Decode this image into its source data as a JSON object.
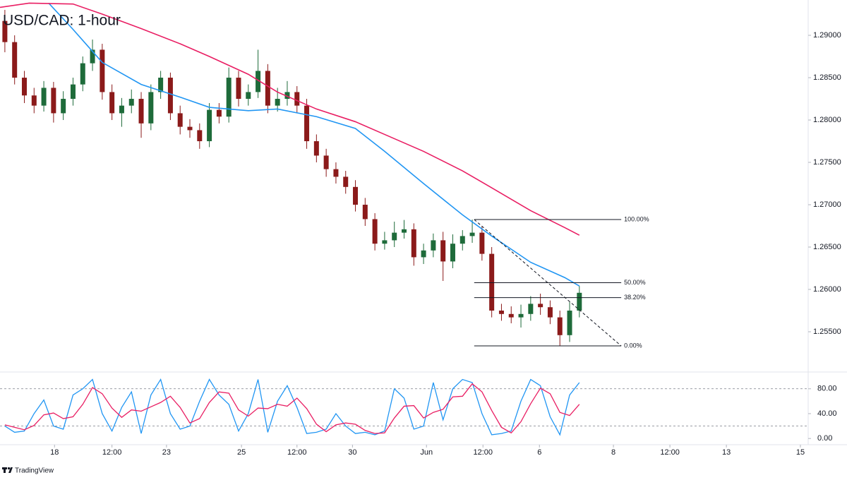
{
  "chart_data": [
    {
      "type": "candlestick",
      "title": "USD/CAD: 1-hour",
      "up_color": "#1e6b3a",
      "down_color": "#8b1a1a",
      "xlim": [
        -0.5,
        82.5
      ],
      "xticks": [
        {
          "value": 5.1,
          "label": "18"
        },
        {
          "value": 11,
          "label": "12:00"
        },
        {
          "value": 16.6,
          "label": "23"
        },
        {
          "value": 24.3,
          "label": "25"
        },
        {
          "value": 30,
          "label": "12:00"
        },
        {
          "value": 35.7,
          "label": "30"
        },
        {
          "value": 43.3,
          "label": "Jun"
        },
        {
          "value": 49.1,
          "label": "12:00"
        },
        {
          "value": 54.9,
          "label": "6"
        },
        {
          "value": 62.5,
          "label": "8"
        },
        {
          "value": 68.3,
          "label": "12:00"
        },
        {
          "value": 74.1,
          "label": "13"
        },
        {
          "value": 81.7,
          "label": "15"
        }
      ],
      "ylim": [
        1.25025,
        1.29417
      ],
      "yticks": [
        {
          "value": 1.255,
          "label": "1.25500"
        },
        {
          "value": 1.26,
          "label": "1.26000"
        },
        {
          "value": 1.265,
          "label": "1.26500"
        },
        {
          "value": 1.27,
          "label": "1.27000"
        },
        {
          "value": 1.275,
          "label": "1.27500"
        },
        {
          "value": 1.28,
          "label": "1.28000"
        },
        {
          "value": 1.285,
          "label": "1.28500"
        },
        {
          "value": 1.29,
          "label": "1.29000"
        }
      ],
      "open": [
        1.2917,
        1.2892,
        1.285,
        1.2829,
        1.2817,
        1.2838,
        1.2808,
        1.2825,
        1.2842,
        1.2867,
        1.2883,
        1.2833,
        1.2808,
        1.2817,
        1.2825,
        1.2796,
        1.2833,
        1.285,
        1.2808,
        1.2792,
        1.2788,
        1.2775,
        1.2812,
        1.2804,
        1.285,
        1.2825,
        1.2833,
        1.2858,
        1.2817,
        1.2825,
        1.2833,
        1.2817,
        1.2775,
        1.2758,
        1.2742,
        1.2733,
        1.2721,
        1.27,
        1.2683,
        1.2654,
        1.2658,
        1.2667,
        1.2671,
        1.2638,
        1.2646,
        1.2658,
        1.2633,
        1.2654,
        1.2663,
        1.2667,
        1.2642,
        1.2575,
        1.2571,
        1.2567,
        1.2571,
        1.2583,
        1.2579,
        1.2567,
        1.2546,
        1.2575
      ],
      "high": [
        1.293,
        1.29,
        1.2858,
        1.2838,
        1.2846,
        1.2845,
        1.2834,
        1.285,
        1.2875,
        1.2895,
        1.289,
        1.2842,
        1.2826,
        1.2836,
        1.2833,
        1.2842,
        1.2858,
        1.2856,
        1.2817,
        1.2801,
        1.2796,
        1.282,
        1.282,
        1.2862,
        1.2858,
        1.2842,
        1.2883,
        1.2866,
        1.2838,
        1.2846,
        1.284,
        1.2825,
        1.2783,
        1.2766,
        1.275,
        1.274,
        1.2729,
        1.2708,
        1.269,
        1.2668,
        1.268,
        1.2682,
        1.2678,
        1.2654,
        1.2666,
        1.2668,
        1.2665,
        1.267,
        1.26825,
        1.2674,
        1.265,
        1.2583,
        1.258,
        1.2582,
        1.2592,
        1.2595,
        1.2587,
        1.2575,
        1.2585,
        1.2604
      ],
      "low": [
        1.288,
        1.2842,
        1.282,
        1.2808,
        1.281,
        1.2797,
        1.28,
        1.2817,
        1.2834,
        1.2858,
        1.2824,
        1.28,
        1.2792,
        1.2808,
        1.2779,
        1.2788,
        1.2825,
        1.28,
        1.2783,
        1.2779,
        1.2766,
        1.2768,
        1.2796,
        1.2797,
        1.2816,
        1.2817,
        1.2826,
        1.2808,
        1.281,
        1.2817,
        1.2808,
        1.2766,
        1.275,
        1.2733,
        1.2725,
        1.2713,
        1.2692,
        1.2675,
        1.2646,
        1.2647,
        1.265,
        1.266,
        1.2628,
        1.263,
        1.2638,
        1.261,
        1.2625,
        1.2646,
        1.2655,
        1.2634,
        1.2567,
        1.2563,
        1.256,
        1.2555,
        1.2563,
        1.257,
        1.2559,
        1.25333,
        1.2538,
        1.2567
      ],
      "close": [
        1.2892,
        1.285,
        1.2829,
        1.2817,
        1.2838,
        1.2808,
        1.2825,
        1.2842,
        1.2867,
        1.2883,
        1.2833,
        1.2808,
        1.2817,
        1.2825,
        1.2796,
        1.2833,
        1.285,
        1.2808,
        1.2792,
        1.2788,
        1.2775,
        1.2812,
        1.2804,
        1.285,
        1.2825,
        1.2833,
        1.2858,
        1.2817,
        1.2825,
        1.2833,
        1.2817,
        1.2775,
        1.2758,
        1.2742,
        1.2733,
        1.2721,
        1.27,
        1.2683,
        1.2654,
        1.2658,
        1.2667,
        1.2671,
        1.2638,
        1.2646,
        1.2658,
        1.2633,
        1.2654,
        1.2663,
        1.2667,
        1.2642,
        1.2575,
        1.2571,
        1.2567,
        1.2571,
        1.2583,
        1.2579,
        1.2567,
        1.2546,
        1.2575,
        1.2596
      ],
      "series": [
        {
          "color": "#2196f3",
          "x": [
            4.5,
            7,
            10,
            14,
            18,
            21,
            25,
            28,
            32,
            36,
            39,
            43,
            47,
            50,
            54,
            57.5,
            59
          ],
          "values": [
            1.2938,
            1.2907,
            1.2868,
            1.2842,
            1.2827,
            1.2815,
            1.2811,
            1.2813,
            1.2804,
            1.279,
            1.2763,
            1.2725,
            1.2688,
            1.2663,
            1.2632,
            1.2614,
            1.2604
          ]
        },
        {
          "color": "#e91e63",
          "x": [
            -0.5,
            2.5,
            7,
            10,
            14,
            18,
            21,
            25,
            28,
            32,
            36,
            39,
            43,
            47,
            50,
            54,
            57.5,
            59
          ],
          "values": [
            1.2933,
            1.2938,
            1.2937,
            1.2925,
            1.2908,
            1.289,
            1.2875,
            1.2854,
            1.2833,
            1.2813,
            1.2798,
            1.2783,
            1.2763,
            1.274,
            1.272,
            1.2693,
            1.2673,
            1.2664
          ]
        }
      ],
      "fib": {
        "x": [
          48.2,
          63.3
        ],
        "levels": [
          {
            "label": "100.00%",
            "price": 1.26825
          },
          {
            "label": "50.00%",
            "price": 1.26079
          },
          {
            "label": "38.20%",
            "price": 1.25903
          },
          {
            "label": "0.00%",
            "price": 1.25333
          }
        ]
      }
    },
    {
      "type": "line",
      "ylim": [
        -10,
        107
      ],
      "yticks": [
        {
          "value": 0,
          "label": "0.00"
        },
        {
          "value": 40,
          "label": "40.00"
        },
        {
          "value": 80,
          "label": "80.00"
        }
      ],
      "bands": [
        20,
        80
      ],
      "series": [
        {
          "color": "#2196f3",
          "values": [
            20,
            10,
            12,
            40,
            62,
            20,
            15,
            70,
            80,
            95,
            40,
            12,
            50,
            75,
            8,
            70,
            95,
            40,
            15,
            20,
            60,
            95,
            70,
            55,
            12,
            40,
            95,
            10,
            60,
            85,
            50,
            8,
            10,
            15,
            40,
            20,
            8,
            10,
            6,
            12,
            80,
            65,
            15,
            20,
            90,
            30,
            80,
            95,
            90,
            40,
            6,
            8,
            12,
            60,
            95,
            85,
            35,
            6,
            70,
            90
          ]
        },
        {
          "color": "#e91e63",
          "values": [
            22,
            18,
            14,
            21,
            38,
            41,
            32,
            35,
            55,
            82,
            72,
            49,
            34,
            46,
            44,
            51,
            58,
            68,
            50,
            25,
            32,
            58,
            75,
            73,
            46,
            36,
            49,
            48,
            55,
            52,
            65,
            48,
            23,
            11,
            22,
            25,
            23,
            13,
            8,
            9,
            33,
            52,
            53,
            33,
            42,
            47,
            67,
            68,
            88,
            75,
            45,
            18,
            9,
            27,
            56,
            81,
            72,
            42,
            37,
            55
          ]
        }
      ]
    }
  ],
  "logo": "TradingView"
}
